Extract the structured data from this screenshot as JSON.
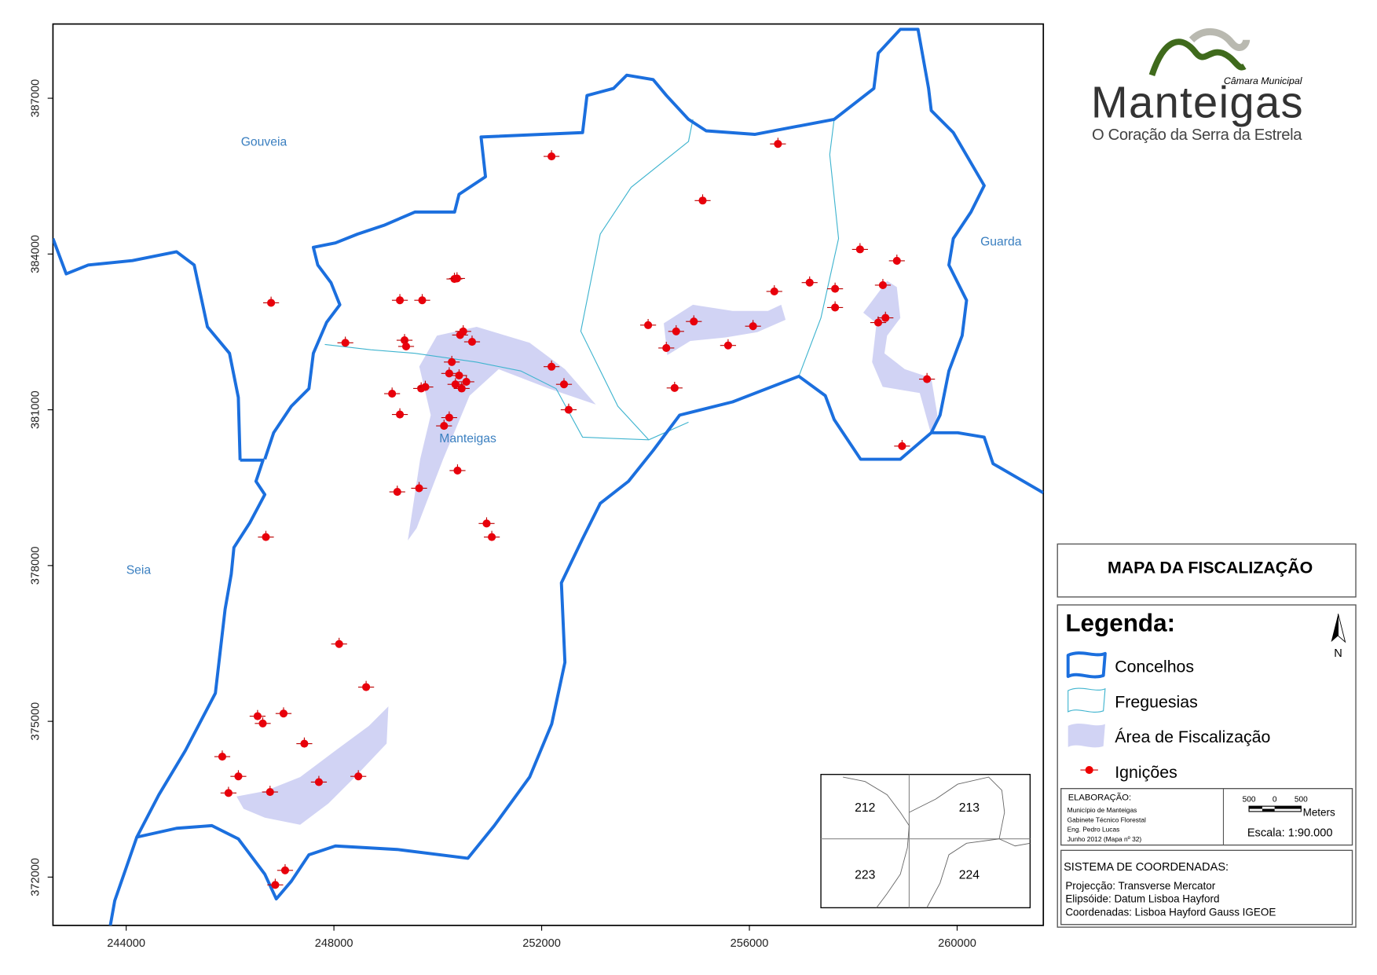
{
  "logo": {
    "org": "Câmara Municipal",
    "name": "Manteigas",
    "slogan": "O Coração da Serra da Estrela"
  },
  "map": {
    "xlim": [
      242590,
      261660
    ],
    "ylim": [
      371070,
      388430
    ],
    "xticks": [
      244000,
      248000,
      252000,
      256000,
      260000
    ],
    "yticks": [
      372000,
      375000,
      378000,
      381000,
      384000,
      387000
    ],
    "places": [
      "Gouveia",
      "Guarda",
      "Seia",
      "Manteigas"
    ],
    "ignitions": {
      "x": [
        252190,
        256550,
        255100,
        246790,
        249270,
        249700,
        250320,
        250370,
        248220,
        249360,
        249390,
        250430,
        250490,
        250660,
        250270,
        250220,
        250410,
        250550,
        250340,
        250460,
        249680,
        249760,
        249120,
        249270,
        250220,
        250120,
        250380,
        249640,
        249220,
        252190,
        252430,
        252520,
        250940,
        251040,
        246690,
        248100,
        248620,
        246530,
        246630,
        247030,
        247430,
        245850,
        246160,
        245970,
        246770,
        247710,
        248470,
        247060,
        246870,
        254050,
        254590,
        254930,
        254400,
        254560,
        255590,
        256070,
        256480,
        257160,
        257650,
        257650,
        258130,
        258840,
        258570,
        258480,
        258620,
        259420,
        258940
      ],
      "y": [
        385880,
        386120,
        385030,
        383060,
        383110,
        383110,
        383520,
        383530,
        382290,
        382340,
        382220,
        382440,
        382510,
        382310,
        381920,
        381700,
        381660,
        381540,
        381490,
        381410,
        381410,
        381440,
        381310,
        380910,
        380850,
        380690,
        379830,
        379490,
        379420,
        381830,
        381490,
        381000,
        378810,
        378550,
        378550,
        376490,
        375660,
        375100,
        374960,
        375150,
        374570,
        374320,
        373940,
        373620,
        373640,
        373830,
        373940,
        372130,
        371850,
        382630,
        382510,
        382700,
        382190,
        381420,
        382240,
        382610,
        383280,
        383450,
        383330,
        382970,
        384090,
        383870,
        383400,
        382680,
        382770,
        381590,
        380300
      ]
    }
  },
  "title": "MAPA DA FISCALIZAÇÃO",
  "legend": {
    "title": "Legenda:",
    "north": "N",
    "items": [
      "Concelhos",
      "Freguesias",
      "Área de Fiscalização",
      "Ignições"
    ]
  },
  "credits": {
    "heading": "ELABORAÇÃO:",
    "lines": [
      "Município de Manteigas",
      "Gabinete Técnico Florestal",
      "Eng. Pedro Lucas",
      "Junho 2012 (Mapa nº 32)"
    ]
  },
  "scale": {
    "ticks": [
      500,
      0,
      500
    ],
    "unit": "Meters",
    "ratio": "Escala: 1:90.000"
  },
  "coordinates": {
    "heading": "SISTEMA DE COORDENADAS:",
    "lines": [
      "Projecção: Transverse Mercator",
      "Elipsóide: Datum Lisboa Hayford",
      "Coordenadas: Lisboa Hayford Gauss IGEOE"
    ]
  },
  "inset": {
    "sheets": [
      "212",
      "213",
      "223",
      "224"
    ]
  }
}
